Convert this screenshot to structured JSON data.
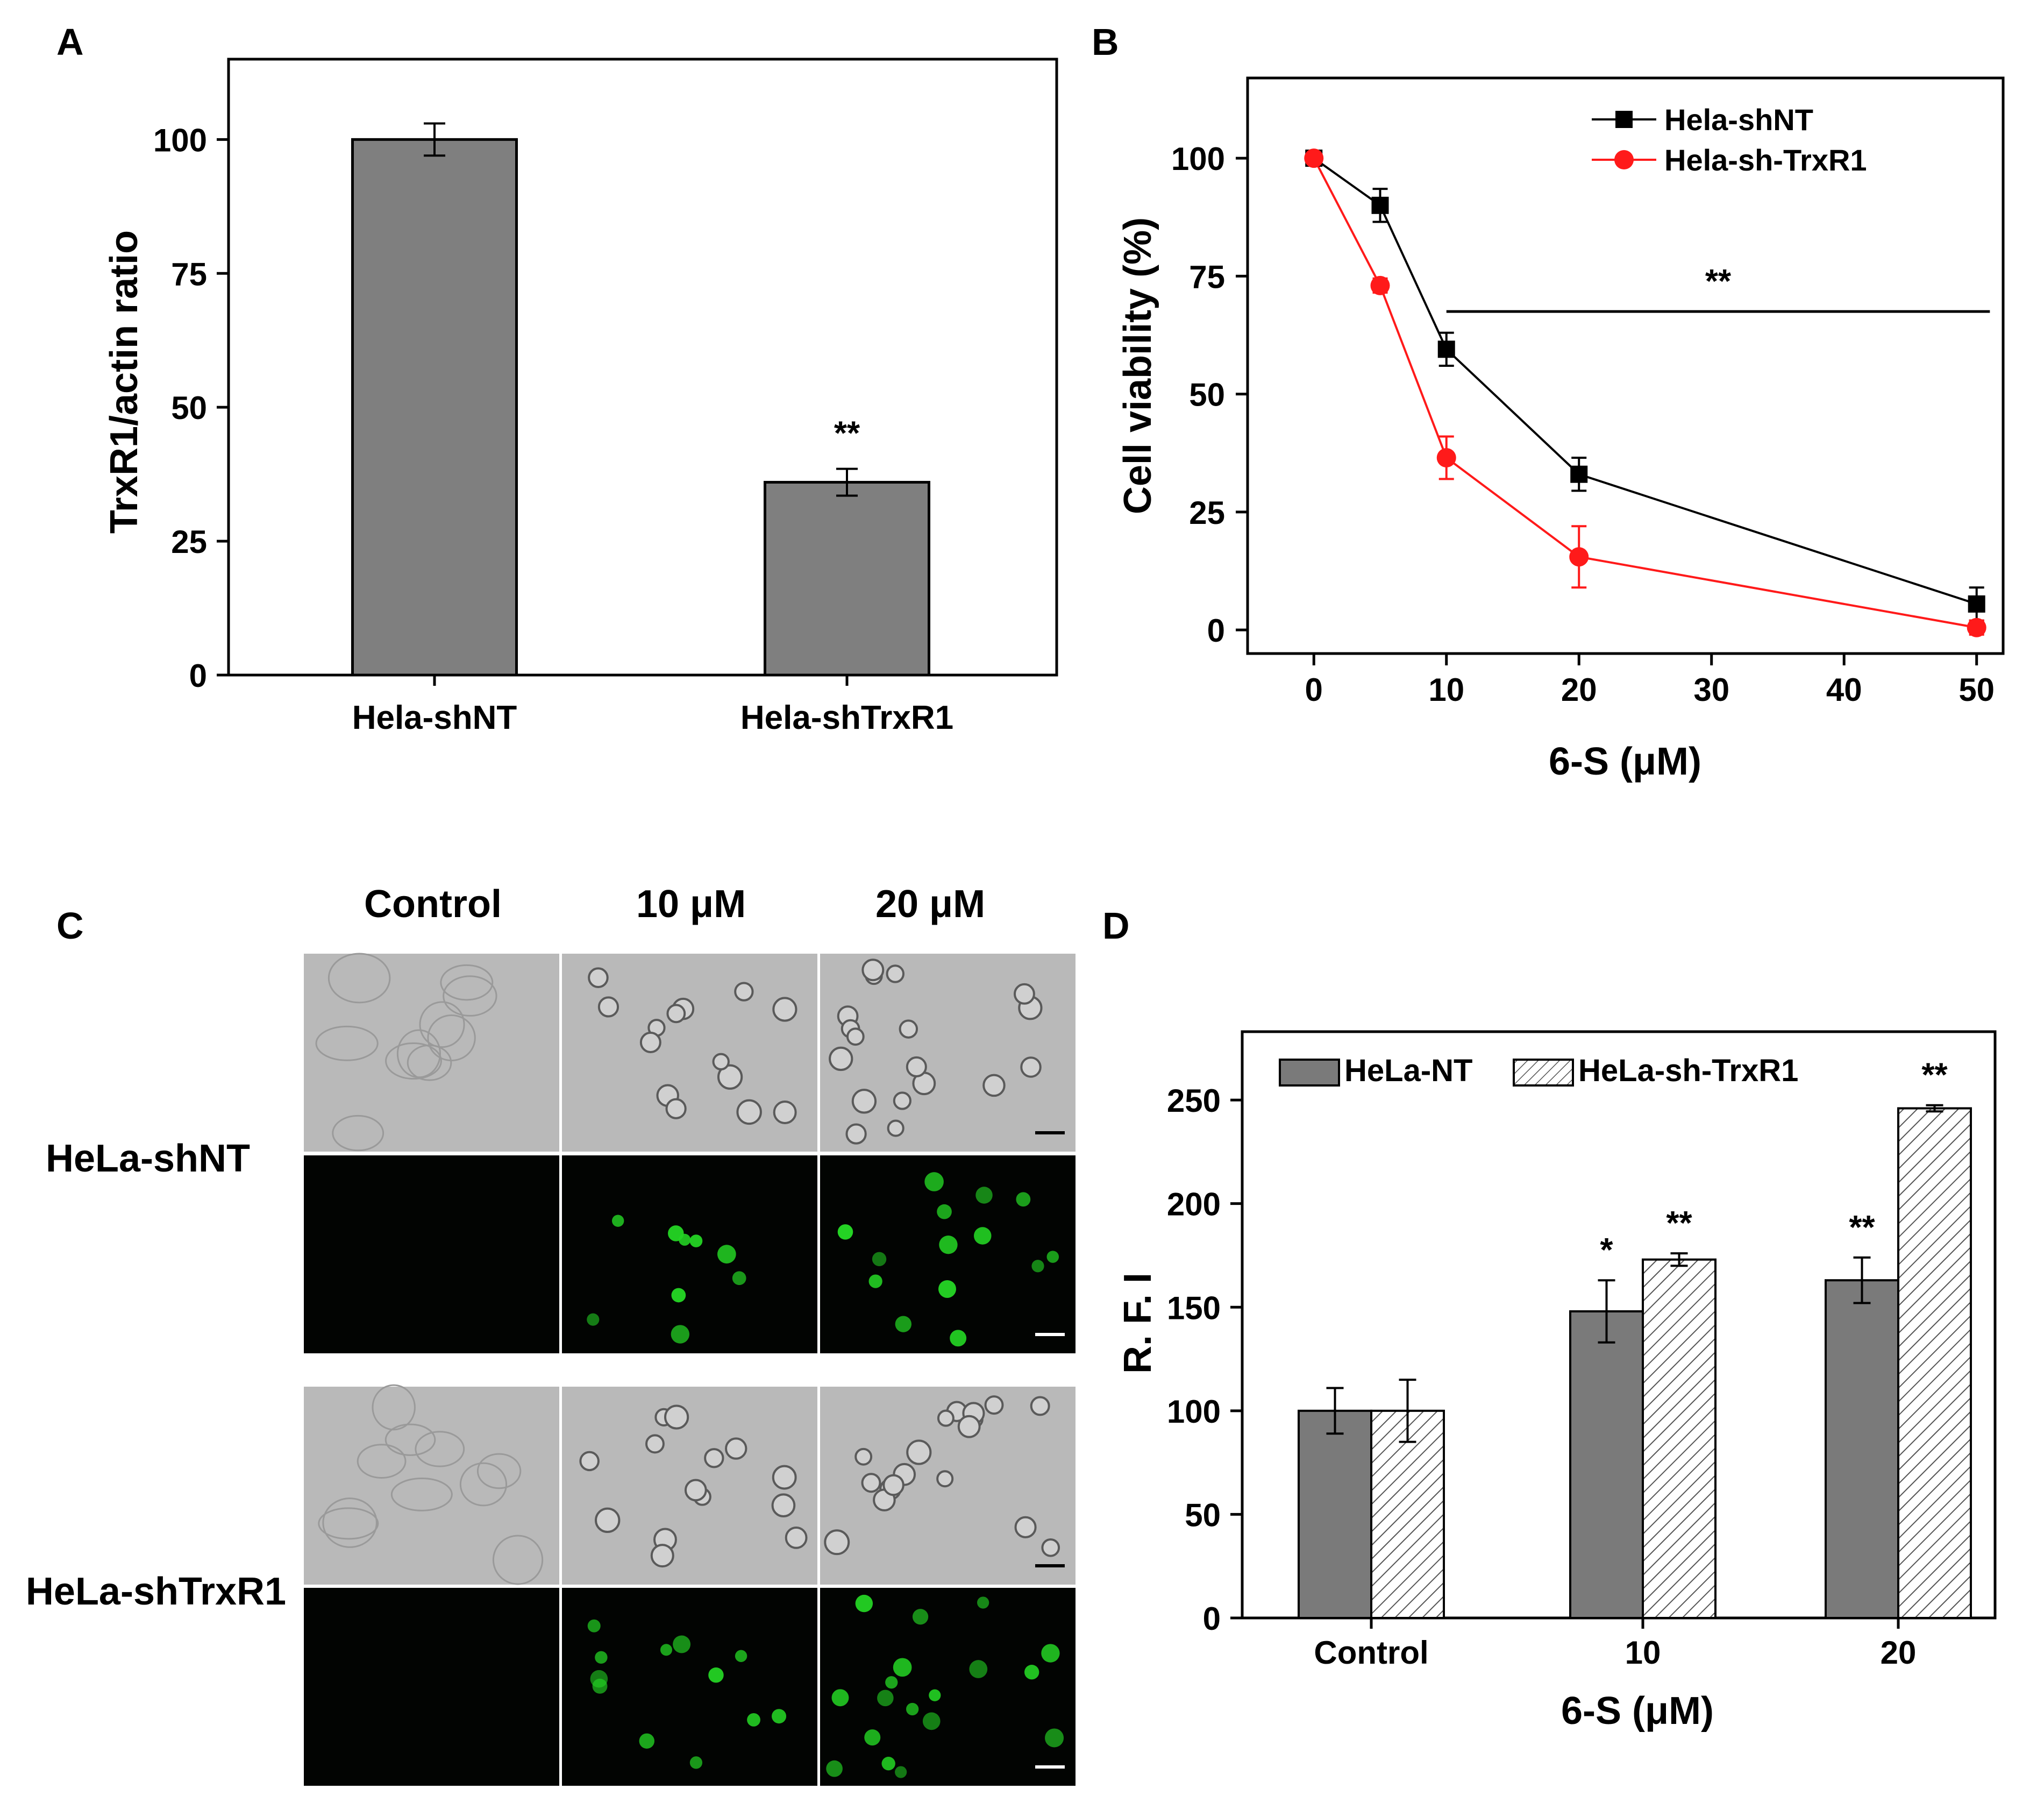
{
  "panel_letters": {
    "a": "A",
    "b": "B",
    "c": "C",
    "d": "D"
  },
  "chart_data": [
    {
      "panel": "A",
      "type": "bar",
      "title": "",
      "xlabel": "",
      "ylabel": "TrxR1/actin ratio",
      "categories": [
        "Hela-shNT",
        "Hela-shTrxR1"
      ],
      "values": [
        100,
        36
      ],
      "errors": [
        3,
        2.5
      ],
      "annotations": [
        "",
        "**"
      ],
      "ylim": [
        0,
        115
      ],
      "yticks": [
        0,
        25,
        50,
        75,
        100
      ],
      "bar_color": "#7f7f7f"
    },
    {
      "panel": "B",
      "type": "line",
      "xlabel": "6-S (μM)",
      "ylabel": "Cell viability (%)",
      "x": [
        0,
        5,
        10,
        20,
        50
      ],
      "xlim": [
        -5,
        52
      ],
      "ylim": [
        -5,
        117
      ],
      "xticks": [
        0,
        10,
        20,
        30,
        40,
        50
      ],
      "yticks": [
        0,
        25,
        50,
        75,
        100
      ],
      "series": [
        {
          "name": "Hela-shNT",
          "values": [
            100,
            90,
            59.5,
            33,
            5.5
          ],
          "errors": [
            1.5,
            3.5,
            3.5,
            3.5,
            3.5
          ],
          "color": "#000000",
          "marker": "square"
        },
        {
          "name": "Hela-sh-TrxR1",
          "values": [
            100,
            73,
            36.5,
            15.5,
            0.5
          ],
          "errors": [
            1,
            1.5,
            4.5,
            6.5,
            1.5
          ],
          "color": "#ff1a1a",
          "marker": "circle"
        }
      ],
      "significance": {
        "label": "**",
        "x_from": 10,
        "x_to": 51,
        "y": 67.5
      },
      "legend": "top-right"
    },
    {
      "panel": "D",
      "type": "bar",
      "xlabel": "6-S (μM)",
      "ylabel": "R. F. I",
      "categories": [
        "Control",
        "10",
        "20"
      ],
      "series": [
        {
          "name": "HeLa-NT",
          "values": [
            100,
            148,
            163
          ],
          "errors": [
            11,
            15,
            11
          ],
          "annotations": [
            "",
            "*",
            "**"
          ],
          "fill": "#7a7a7a"
        },
        {
          "name": "HeLa-sh-TrxR1",
          "values": [
            100,
            173,
            246
          ],
          "errors": [
            15,
            3,
            1.5
          ],
          "annotations": [
            "",
            "**",
            "**"
          ],
          "fill": "hatched"
        }
      ],
      "ylim": [
        0,
        283
      ],
      "yticks": [
        0,
        50,
        100,
        150,
        200,
        250
      ],
      "legend": "top-left"
    }
  ],
  "microscopy": {
    "col_labels": [
      "Control",
      "10 μM",
      "20 μM"
    ],
    "row_labels": [
      "HeLa-shNT",
      "HeLa-shTrxR1"
    ],
    "fluor_spots_per_panel": [
      0,
      9,
      14,
      0,
      12,
      18
    ],
    "fluor_color": "#24d424"
  }
}
